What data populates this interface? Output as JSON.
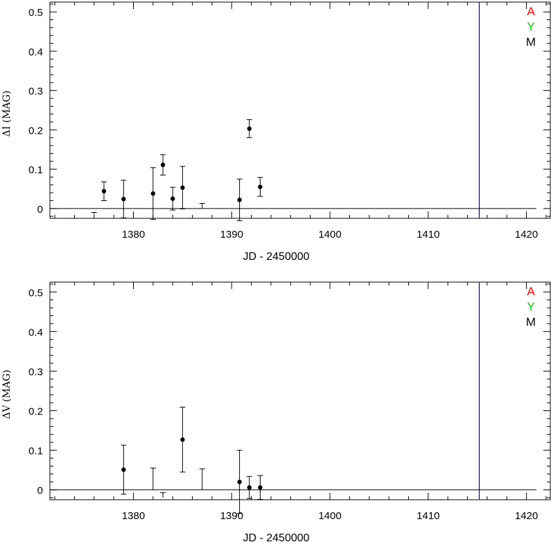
{
  "chart_data": [
    {
      "type": "scatter",
      "title": "",
      "xlabel": "JD - 2450000",
      "ylabel": "ΔI (MAG)",
      "xlim": [
        1371.5,
        1422.5
      ],
      "ylim": [
        -0.025,
        0.525
      ],
      "xticks": [
        1380,
        1390,
        1400,
        1410,
        1420
      ],
      "yticks": [
        0,
        0.1,
        0.2,
        0.3,
        0.4,
        0.5
      ],
      "ytick_labels": [
        "0",
        "0.1",
        "0.2",
        "0.3",
        "0.4",
        "0.5"
      ],
      "legend": {
        "placement": "top-right",
        "entries": [
          {
            "label": "A",
            "color": "#ff0000"
          },
          {
            "label": "Y",
            "color": "#00cc00"
          },
          {
            "label": "M",
            "color": "#000000"
          }
        ]
      },
      "vertical_line": {
        "x": 1415.2,
        "color": "#0000aa"
      },
      "zero_line": {
        "y": 0,
        "x_range": [
          1371.5,
          1421
        ]
      },
      "series": [
        {
          "points": [
            {
              "x": 1377.0,
              "y": 0.044,
              "err": 0.024
            },
            {
              "x": 1379.0,
              "y": 0.024,
              "err": 0.048
            },
            {
              "x": 1382.0,
              "y": 0.038,
              "err": 0.066
            },
            {
              "x": 1383.0,
              "y": 0.111,
              "err": 0.026
            },
            {
              "x": 1384.0,
              "y": 0.025,
              "err": 0.029
            },
            {
              "x": 1385.0,
              "y": 0.053,
              "err": 0.054
            },
            {
              "x": 1390.8,
              "y": 0.022,
              "err": 0.053
            },
            {
              "x": 1391.8,
              "y": 0.203,
              "err": 0.023
            },
            {
              "x": 1392.9,
              "y": 0.055,
              "err": 0.024
            }
          ],
          "upper_limits": [
            {
              "x": 1376.0,
              "y": -0.015,
              "top": -0.01
            },
            {
              "x": 1387.0,
              "y": 0.0,
              "top": 0.013
            }
          ]
        }
      ]
    },
    {
      "type": "scatter",
      "title": "",
      "xlabel": "JD - 2450000",
      "ylabel": "ΔV (MAG)",
      "xlim": [
        1371.5,
        1422.5
      ],
      "ylim": [
        -0.025,
        0.525
      ],
      "xticks": [
        1380,
        1390,
        1400,
        1410,
        1420
      ],
      "yticks": [
        0,
        0.1,
        0.2,
        0.3,
        0.4,
        0.5
      ],
      "ytick_labels": [
        "0",
        "0.1",
        "0.2",
        "0.3",
        "0.4",
        "0.5"
      ],
      "legend": {
        "placement": "top-right",
        "entries": [
          {
            "label": "A",
            "color": "#ff0000"
          },
          {
            "label": "Y",
            "color": "#00cc00"
          },
          {
            "label": "M",
            "color": "#000000"
          }
        ]
      },
      "vertical_line": {
        "x": 1415.2,
        "color": "#0000aa"
      },
      "zero_line": {
        "y": 0,
        "x_range": [
          1371.5,
          1421
        ]
      },
      "series": [
        {
          "points": [
            {
              "x": 1379.0,
              "y": 0.051,
              "err": 0.062
            },
            {
              "x": 1385.0,
              "y": 0.127,
              "err": 0.082
            },
            {
              "x": 1390.8,
              "y": 0.02,
              "err": 0.08
            },
            {
              "x": 1391.8,
              "y": 0.006,
              "err": 0.028
            },
            {
              "x": 1392.9,
              "y": 0.006,
              "err": 0.03
            }
          ],
          "upper_limits": [
            {
              "x": 1382.0,
              "y": 0.0,
              "top": 0.055
            },
            {
              "x": 1383.0,
              "y": -0.02,
              "top": -0.007
            },
            {
              "x": 1387.0,
              "y": 0.0,
              "top": 0.053
            }
          ]
        }
      ]
    }
  ]
}
